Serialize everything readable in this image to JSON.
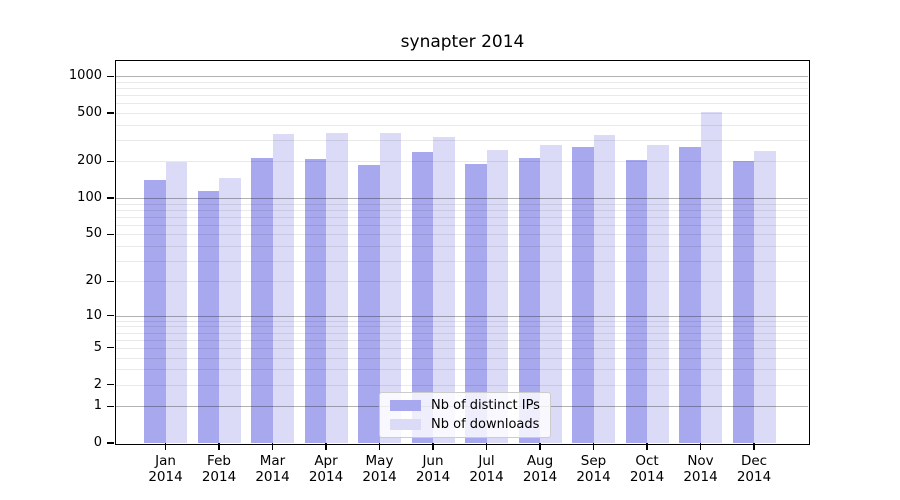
{
  "title": "synapter 2014",
  "colors": {
    "distinct_ips": "#a8a8ee",
    "downloads": "#dbdbf7",
    "spine": "#000000",
    "major_grid": "rgba(0,0,0,0.30)",
    "minor_grid": "rgba(0,0,0,0.085)",
    "legend_border": "#cccccc",
    "background": "#ffffff"
  },
  "legend": {
    "items": [
      {
        "label": "Nb of distinct IPs",
        "series": "distinct_ips"
      },
      {
        "label": "Nb of downloads",
        "series": "downloads"
      }
    ]
  },
  "chart_data": {
    "type": "bar",
    "title": "synapter 2014",
    "categories": [
      "Jan 2014",
      "Feb 2014",
      "Mar 2014",
      "Apr 2014",
      "May 2014",
      "Jun 2014",
      "Jul 2014",
      "Aug 2014",
      "Sep 2014",
      "Oct 2014",
      "Nov 2014",
      "Dec 2014"
    ],
    "x_tick_line1": [
      "Jan",
      "Feb",
      "Mar",
      "Apr",
      "May",
      "Jun",
      "Jul",
      "Aug",
      "Sep",
      "Oct",
      "Nov",
      "Dec"
    ],
    "x_tick_line2": [
      "2014",
      "2014",
      "2014",
      "2014",
      "2014",
      "2014",
      "2014",
      "2014",
      "2014",
      "2014",
      "2014",
      "2014"
    ],
    "series": [
      {
        "name": "Nb of distinct IPs",
        "color": "#a8a8ee",
        "values": [
          142,
          114,
          215,
          210,
          188,
          240,
          192,
          214,
          262,
          207,
          265,
          200
        ]
      },
      {
        "name": "Nb of downloads",
        "color": "#dbdbf7",
        "values": [
          198,
          145,
          336,
          342,
          344,
          318,
          247,
          271,
          332,
          271,
          512,
          246
        ]
      }
    ],
    "y_ticks": [
      0,
      1,
      2,
      5,
      10,
      20,
      50,
      100,
      200,
      500,
      1000
    ],
    "y_scale": "log1p",
    "ylim": [
      0,
      1400
    ],
    "xlabel": "",
    "ylabel": "",
    "grid": "both-horizontal",
    "grid_on_top_of_bars": true,
    "legend_position": "lower-center"
  }
}
